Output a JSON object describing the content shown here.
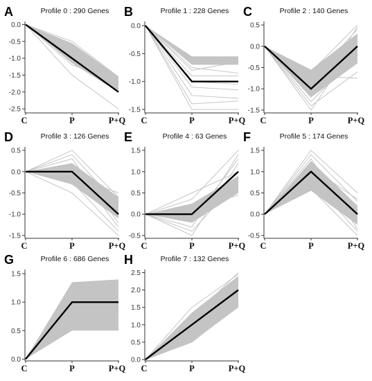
{
  "chart_data": [
    {
      "type": "line",
      "panel_label": "A",
      "title": "Profile 0 : 290 Genes",
      "categories": [
        "C",
        "P",
        "P+Q"
      ],
      "ylim": [
        -2.6,
        0.05
      ],
      "yticks": [
        "0.0",
        "-0.5",
        "-1.0",
        "-1.5",
        "-2.0",
        "-2.5"
      ],
      "ytick_values": [
        0,
        -0.5,
        -1.0,
        -1.5,
        -2.0,
        -2.5
      ],
      "profile": [
        0,
        -1.0,
        -2.0
      ],
      "band": {
        "upper": [
          0,
          -0.55,
          -1.55
        ],
        "lower": [
          0,
          -1.15,
          -2.0
        ]
      },
      "gene_lines": [
        [
          0,
          -0.5,
          -1.55
        ],
        [
          0,
          -0.7,
          -1.7
        ],
        [
          0,
          -0.9,
          -1.8
        ],
        [
          0,
          -1.1,
          -1.9
        ],
        [
          0,
          -1.5,
          -2.5
        ],
        [
          0,
          -1.2,
          -1.65
        ]
      ]
    },
    {
      "type": "line",
      "panel_label": "B",
      "title": "Profile 1 : 228 Genes",
      "categories": [
        "C",
        "P",
        "P+Q"
      ],
      "ylim": [
        -1.55,
        0.05
      ],
      "yticks": [
        "0.0",
        "-0.5",
        "-1.0",
        "-1.5"
      ],
      "ytick_values": [
        0,
        -0.5,
        -1.0,
        -1.5
      ],
      "profile": [
        0,
        -1.0,
        -1.0
      ],
      "band": {
        "upper": [
          0,
          -0.55,
          -0.55
        ],
        "lower": [
          0,
          -0.7,
          -0.7
        ]
      },
      "gene_lines": [
        [
          0,
          -0.8,
          -0.65
        ],
        [
          0,
          -0.9,
          -0.9
        ],
        [
          0,
          -1.0,
          -1.05
        ],
        [
          0,
          -1.1,
          -1.15
        ],
        [
          0,
          -1.25,
          -1.3
        ],
        [
          0,
          -1.4,
          -1.35
        ],
        [
          0,
          -1.5,
          -1.5
        ],
        [
          0,
          -0.75,
          -0.85
        ]
      ]
    },
    {
      "type": "line",
      "panel_label": "C",
      "title": "Profile 2 : 140 Genes",
      "categories": [
        "C",
        "P",
        "P+Q"
      ],
      "ylim": [
        -1.55,
        0.55
      ],
      "yticks": [
        "0.5",
        "0.0",
        "-0.5",
        "-1.0",
        "-1.5"
      ],
      "ytick_values": [
        0.5,
        0,
        -0.5,
        -1.0,
        -1.5
      ],
      "profile": [
        0,
        -1.0,
        0
      ],
      "band": {
        "upper": [
          0,
          -0.55,
          0.3
        ],
        "lower": [
          0,
          -1.2,
          -0.4
        ]
      },
      "gene_lines": [
        [
          0,
          -0.6,
          0.5
        ],
        [
          0,
          -0.8,
          0.4
        ],
        [
          0,
          -1.3,
          -0.2
        ],
        [
          0,
          -1.4,
          -0.6
        ],
        [
          0,
          -1.5,
          0.1
        ],
        [
          0,
          -0.7,
          -0.75
        ],
        [
          0,
          -1.2,
          0.45
        ]
      ]
    },
    {
      "type": "line",
      "panel_label": "D",
      "title": "Profile 3 : 126 Genes",
      "categories": [
        "C",
        "P",
        "P+Q"
      ],
      "ylim": [
        -1.55,
        0.55
      ],
      "yticks": [
        "0.5",
        "0.0",
        "-0.5",
        "-1.0",
        "-1.5"
      ],
      "ytick_values": [
        0.5,
        0,
        -0.5,
        -1.0,
        -1.5
      ],
      "profile": [
        0,
        0,
        -1.0
      ],
      "band": {
        "upper": [
          0,
          0.2,
          -0.6
        ],
        "lower": [
          0,
          -0.3,
          -1.1
        ]
      },
      "gene_lines": [
        [
          0,
          0.5,
          -0.6
        ],
        [
          0,
          0.4,
          -0.8
        ],
        [
          0,
          0.3,
          -1.2
        ],
        [
          0,
          -0.25,
          -1.4
        ],
        [
          0,
          -0.5,
          -1.5
        ],
        [
          0,
          0.15,
          -1.3
        ],
        [
          0,
          -0.1,
          -0.5
        ]
      ]
    },
    {
      "type": "line",
      "panel_label": "E",
      "title": "Profile 4 : 63 Genes",
      "categories": [
        "C",
        "P",
        "P+Q"
      ],
      "ylim": [
        -0.55,
        1.55
      ],
      "yticks": [
        "1.5",
        "1.0",
        "0.5",
        "0.0",
        "-0.5"
      ],
      "ytick_values": [
        1.5,
        1.0,
        0.5,
        0,
        -0.5
      ],
      "profile": [
        0,
        0,
        1.0
      ],
      "band": {
        "upper": [
          0,
          0.25,
          0.9
        ],
        "lower": [
          0,
          -0.2,
          0.5
        ]
      },
      "gene_lines": [
        [
          0,
          0.5,
          1.0
        ],
        [
          0,
          0.35,
          1.5
        ],
        [
          0,
          -0.3,
          1.4
        ],
        [
          0,
          -0.4,
          0.8
        ],
        [
          0,
          -0.5,
          1.2
        ],
        [
          0,
          0.1,
          0.45
        ],
        [
          0,
          -0.15,
          1.3
        ]
      ]
    },
    {
      "type": "line",
      "panel_label": "F",
      "title": "Profile 5 : 174 Genes",
      "categories": [
        "C",
        "P",
        "P+Q"
      ],
      "ylim": [
        -0.55,
        1.55
      ],
      "yticks": [
        "1.5",
        "1.0",
        "0.5",
        "0.0",
        "-0.5"
      ],
      "ytick_values": [
        1.5,
        1.0,
        0.5,
        0,
        -0.5
      ],
      "profile": [
        0,
        1.0,
        0
      ],
      "band": {
        "upper": [
          0,
          1.25,
          0.2
        ],
        "lower": [
          0,
          0.55,
          -0.25
        ]
      },
      "gene_lines": [
        [
          0,
          1.5,
          0.5
        ],
        [
          0,
          1.4,
          0.3
        ],
        [
          0,
          1.3,
          -0.35
        ],
        [
          0,
          0.6,
          -0.5
        ],
        [
          0,
          1.1,
          0.35
        ],
        [
          0,
          0.8,
          -0.4
        ]
      ]
    },
    {
      "type": "line",
      "panel_label": "G",
      "title": "Profile 6 : 686 Genes",
      "categories": [
        "C",
        "P",
        "P+Q"
      ],
      "ylim": [
        -0.02,
        1.55
      ],
      "yticks": [
        "1.5",
        "1.0",
        "0.5",
        "0.0"
      ],
      "ytick_values": [
        1.5,
        1.0,
        0.5,
        0
      ],
      "profile": [
        0,
        1.0,
        1.0
      ],
      "band": {
        "upper": [
          0,
          1.35,
          1.4
        ],
        "lower": [
          0,
          0.5,
          0.5
        ]
      },
      "gene_lines": [
        [
          0,
          1.3,
          1.35
        ],
        [
          0,
          1.2,
          1.25
        ],
        [
          0,
          1.1,
          1.15
        ],
        [
          0,
          0.95,
          1.05
        ],
        [
          0,
          0.85,
          0.9
        ],
        [
          0,
          0.75,
          0.8
        ],
        [
          0,
          0.65,
          0.7
        ],
        [
          0,
          1.25,
          1.0
        ]
      ]
    },
    {
      "type": "line",
      "panel_label": "H",
      "title": "Profile 7 : 132 Genes",
      "categories": [
        "C",
        "P",
        "P+Q"
      ],
      "ylim": [
        -0.02,
        2.55
      ],
      "yticks": [
        "2.5",
        "2.0",
        "1.5",
        "1.0",
        "0.5",
        "0.0"
      ],
      "ytick_values": [
        2.5,
        2.0,
        1.5,
        1.0,
        0.5,
        0
      ],
      "profile": [
        0,
        1.0,
        2.0
      ],
      "band": {
        "upper": [
          0,
          1.35,
          2.4
        ],
        "lower": [
          0,
          0.5,
          1.5
        ]
      },
      "gene_lines": [
        [
          0,
          1.5,
          2.45
        ],
        [
          0,
          1.3,
          2.3
        ],
        [
          0,
          1.1,
          2.2
        ],
        [
          0,
          0.9,
          1.9
        ],
        [
          0,
          0.7,
          1.7
        ],
        [
          0,
          0.5,
          1.55
        ],
        [
          0,
          1.2,
          2.5
        ]
      ]
    }
  ]
}
